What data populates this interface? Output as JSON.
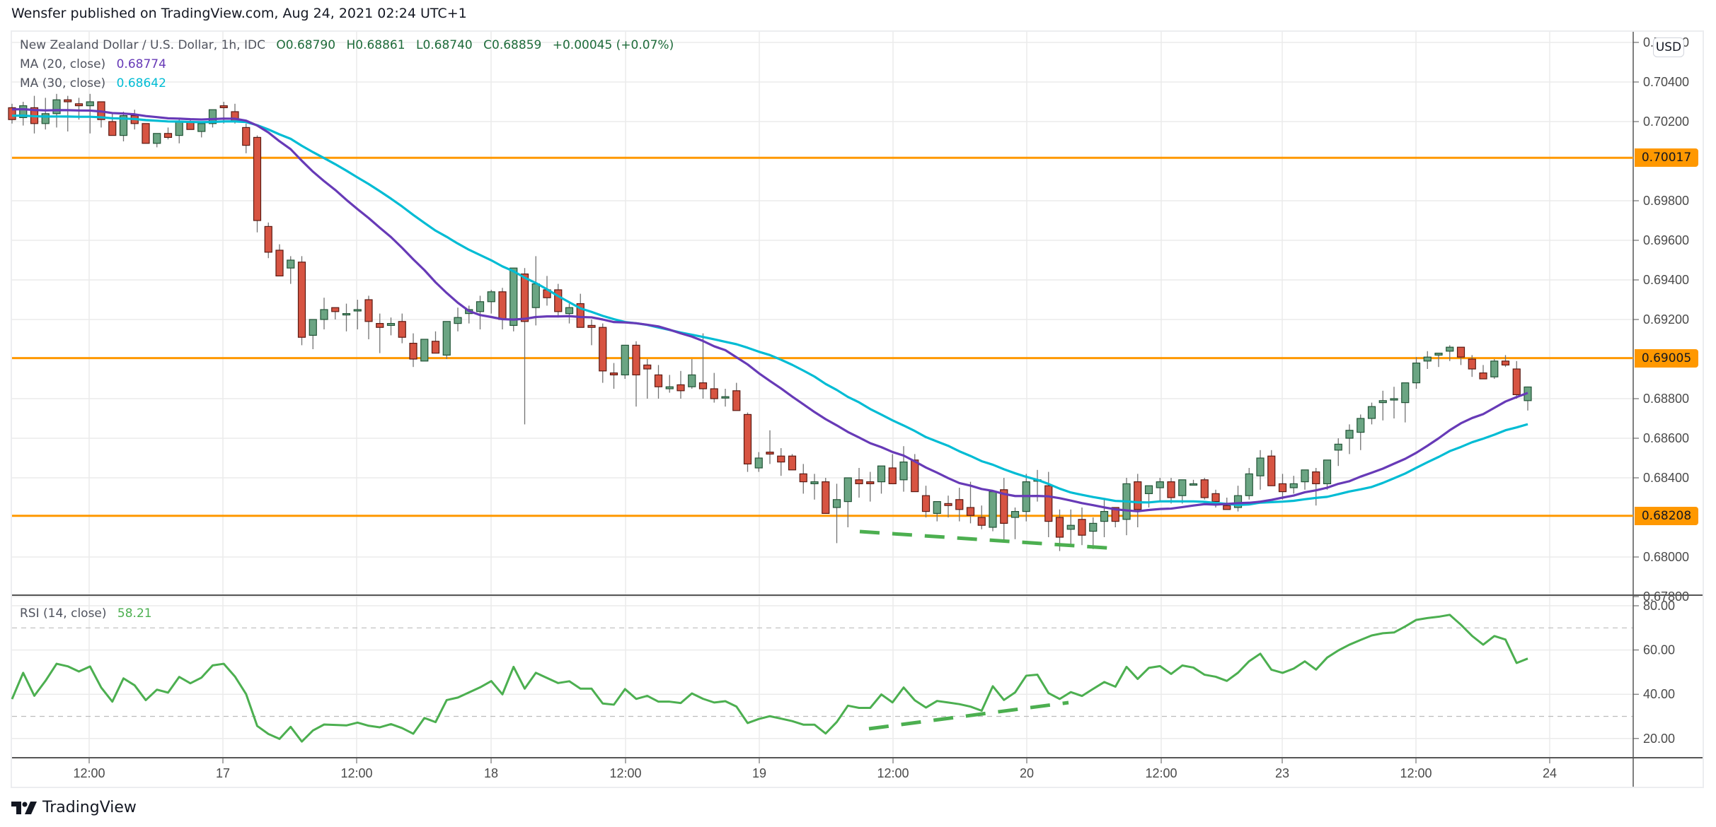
{
  "header": {
    "publisher": "Wensfer published on TradingView.com, Aug 24, 2021 02:24 UTC+1"
  },
  "legend": {
    "symbol": "New Zealand Dollar / U.S. Dollar, 1h, IDC",
    "open": "O0.68790",
    "high": "H0.68861",
    "low": "L0.68740",
    "close": "C0.68859",
    "change": "+0.00045 (+0.07%)",
    "ma20_label": "MA (20, close)",
    "ma20_value": "0.68774",
    "ma30_label": "MA (30, close)",
    "ma30_value": "0.68642",
    "rsi_label": "RSI (14, close)",
    "rsi_value": "58.21"
  },
  "axis": {
    "currency": "USD",
    "price_ticks": [
      "0.70600",
      "0.70400",
      "0.70200",
      "0.69800",
      "0.69600",
      "0.69400",
      "0.69200",
      "0.68800",
      "0.68600",
      "0.68400",
      "0.68000",
      "0.67800"
    ],
    "rsi_ticks": [
      "80.00",
      "60.00",
      "40.00",
      "20.00"
    ],
    "time_ticks": [
      "12:00",
      "17",
      "12:00",
      "18",
      "12:00",
      "19",
      "12:00",
      "20",
      "12:00",
      "23",
      "12:00",
      "24"
    ]
  },
  "levels": [
    {
      "price": 0.70017,
      "label": "0.70017"
    },
    {
      "price": 0.69005,
      "label": "0.69005"
    },
    {
      "price": 0.68208,
      "label": "0.68208"
    }
  ],
  "colors": {
    "up": "#6ba583",
    "up_border": "#225437",
    "down": "#d75442",
    "down_border": "#5b1a13",
    "ma20": "#673ab7",
    "ma30": "#00bcd4",
    "rsi": "#4caf50",
    "level": "#ff9800",
    "trend": "#4caf50"
  },
  "branding": {
    "logo_text": "TradingView"
  },
  "chart_data": {
    "type": "candlestick",
    "title": "New Zealand Dollar / U.S. Dollar, 1h, IDC",
    "xlabel": "",
    "ylabel": "USD",
    "ylim": [
      0.6778,
      0.7062
    ],
    "grid": true,
    "x_ticks": [
      "12:00",
      "17",
      "12:00",
      "18",
      "12:00",
      "19",
      "12:00",
      "20",
      "12:00",
      "23",
      "12:00",
      "24"
    ],
    "ohlc": [
      [
        0.7027,
        0.7029,
        0.7019,
        0.7021
      ],
      [
        0.7022,
        0.703,
        0.7018,
        0.7028
      ],
      [
        0.7027,
        0.7033,
        0.7014,
        0.7019
      ],
      [
        0.7019,
        0.7032,
        0.7016,
        0.7024
      ],
      [
        0.7024,
        0.7034,
        0.7017,
        0.7031
      ],
      [
        0.7031,
        0.7033,
        0.7015,
        0.703
      ],
      [
        0.7029,
        0.7032,
        0.7021,
        0.7028
      ],
      [
        0.7028,
        0.7034,
        0.7014,
        0.703
      ],
      [
        0.703,
        0.703,
        0.7017,
        0.7021
      ],
      [
        0.702,
        0.7024,
        0.7013,
        0.7013
      ],
      [
        0.7013,
        0.7025,
        0.701,
        0.7023
      ],
      [
        0.7023,
        0.7026,
        0.7016,
        0.7019
      ],
      [
        0.7019,
        0.7019,
        0.7009,
        0.7009
      ],
      [
        0.7009,
        0.7014,
        0.7007,
        0.7014
      ],
      [
        0.7014,
        0.7017,
        0.7011,
        0.7012
      ],
      [
        0.7013,
        0.7022,
        0.7009,
        0.702
      ],
      [
        0.702,
        0.7021,
        0.7016,
        0.7016
      ],
      [
        0.7015,
        0.702,
        0.7012,
        0.7019
      ],
      [
        0.7019,
        0.7025,
        0.7017,
        0.7026
      ],
      [
        0.7028,
        0.703,
        0.7019,
        0.7027
      ],
      [
        0.7025,
        0.7029,
        0.7019,
        0.702
      ],
      [
        0.7017,
        0.7019,
        0.7004,
        0.7008
      ],
      [
        0.7012,
        0.7013,
        0.6964,
        0.697
      ],
      [
        0.6967,
        0.6969,
        0.6951,
        0.6954
      ],
      [
        0.6955,
        0.6958,
        0.6943,
        0.6942
      ],
      [
        0.6946,
        0.6952,
        0.6938,
        0.695
      ],
      [
        0.6949,
        0.6952,
        0.6907,
        0.6911
      ],
      [
        0.6912,
        0.6919,
        0.6905,
        0.692
      ],
      [
        0.692,
        0.6931,
        0.6915,
        0.6925
      ],
      [
        0.6926,
        0.6926,
        0.692,
        0.6924
      ],
      [
        0.6923,
        0.6928,
        0.6914,
        0.6923
      ],
      [
        0.6925,
        0.693,
        0.6915,
        0.6925
      ],
      [
        0.693,
        0.6932,
        0.691,
        0.6919
      ],
      [
        0.6918,
        0.6923,
        0.6903,
        0.6916
      ],
      [
        0.6917,
        0.6921,
        0.6912,
        0.6918
      ],
      [
        0.6919,
        0.6923,
        0.6908,
        0.6911
      ],
      [
        0.6908,
        0.6913,
        0.6896,
        0.69
      ],
      [
        0.6899,
        0.6908,
        0.6899,
        0.691
      ],
      [
        0.6909,
        0.6914,
        0.6905,
        0.6903
      ],
      [
        0.6902,
        0.6917,
        0.69,
        0.6919
      ],
      [
        0.6918,
        0.6926,
        0.6914,
        0.6921
      ],
      [
        0.6923,
        0.6927,
        0.6918,
        0.6925
      ],
      [
        0.6924,
        0.6932,
        0.6915,
        0.6929
      ],
      [
        0.6929,
        0.6935,
        0.6923,
        0.6934
      ],
      [
        0.6934,
        0.6936,
        0.6915,
        0.692
      ],
      [
        0.6917,
        0.6946,
        0.6914,
        0.6946
      ],
      [
        0.6943,
        0.6946,
        0.6867,
        0.6919
      ],
      [
        0.6926,
        0.6952,
        0.6917,
        0.6938
      ],
      [
        0.6935,
        0.6942,
        0.6927,
        0.6931
      ],
      [
        0.6935,
        0.6938,
        0.6921,
        0.6924
      ],
      [
        0.6923,
        0.6928,
        0.6918,
        0.6926
      ],
      [
        0.6928,
        0.6933,
        0.6921,
        0.6916
      ],
      [
        0.6917,
        0.692,
        0.6907,
        0.6916
      ],
      [
        0.6916,
        0.6918,
        0.6888,
        0.6894
      ],
      [
        0.6893,
        0.6898,
        0.6885,
        0.6892
      ],
      [
        0.6892,
        0.6904,
        0.689,
        0.6907
      ],
      [
        0.6907,
        0.6909,
        0.6876,
        0.6892
      ],
      [
        0.6897,
        0.69,
        0.688,
        0.6895
      ],
      [
        0.6892,
        0.6897,
        0.688,
        0.6886
      ],
      [
        0.6885,
        0.6892,
        0.6883,
        0.6886
      ],
      [
        0.6887,
        0.6894,
        0.688,
        0.6884
      ],
      [
        0.6886,
        0.69,
        0.6885,
        0.6892
      ],
      [
        0.6888,
        0.6913,
        0.688,
        0.6885
      ],
      [
        0.6885,
        0.6893,
        0.6878,
        0.688
      ],
      [
        0.6881,
        0.6885,
        0.6876,
        0.6881
      ],
      [
        0.6884,
        0.6888,
        0.6875,
        0.6874
      ],
      [
        0.6872,
        0.6873,
        0.6843,
        0.6847
      ],
      [
        0.6845,
        0.6853,
        0.6843,
        0.685
      ],
      [
        0.6853,
        0.6864,
        0.6847,
        0.6852
      ],
      [
        0.6851,
        0.6855,
        0.6841,
        0.6848
      ],
      [
        0.6851,
        0.6852,
        0.6845,
        0.6844
      ],
      [
        0.6842,
        0.6847,
        0.6832,
        0.6838
      ],
      [
        0.6837,
        0.6842,
        0.6829,
        0.6838
      ],
      [
        0.6838,
        0.684,
        0.6825,
        0.6822
      ],
      [
        0.6825,
        0.6837,
        0.6807,
        0.6829
      ],
      [
        0.6828,
        0.684,
        0.6815,
        0.684
      ],
      [
        0.6839,
        0.6845,
        0.683,
        0.6837
      ],
      [
        0.6838,
        0.6843,
        0.6828,
        0.6837
      ],
      [
        0.6838,
        0.6844,
        0.6832,
        0.6846
      ],
      [
        0.6845,
        0.6852,
        0.6837,
        0.6837
      ],
      [
        0.6839,
        0.6856,
        0.6833,
        0.6848
      ],
      [
        0.6849,
        0.6852,
        0.6838,
        0.6833
      ],
      [
        0.6831,
        0.6836,
        0.682,
        0.6823
      ],
      [
        0.6822,
        0.6828,
        0.6818,
        0.6828
      ],
      [
        0.6827,
        0.6831,
        0.682,
        0.6826
      ],
      [
        0.6829,
        0.6835,
        0.6818,
        0.6824
      ],
      [
        0.6825,
        0.6838,
        0.6817,
        0.6821
      ],
      [
        0.682,
        0.6826,
        0.6814,
        0.6816
      ],
      [
        0.6815,
        0.6832,
        0.6813,
        0.6833
      ],
      [
        0.6834,
        0.684,
        0.6808,
        0.6817
      ],
      [
        0.682,
        0.6825,
        0.6809,
        0.6823
      ],
      [
        0.6823,
        0.6842,
        0.6818,
        0.6838
      ],
      [
        0.6839,
        0.6844,
        0.6828,
        0.6839
      ],
      [
        0.6836,
        0.6843,
        0.681,
        0.6818
      ],
      [
        0.682,
        0.6824,
        0.6803,
        0.681
      ],
      [
        0.6814,
        0.6824,
        0.6805,
        0.6816
      ],
      [
        0.6819,
        0.6825,
        0.6806,
        0.6811
      ],
      [
        0.6813,
        0.682,
        0.6804,
        0.6817
      ],
      [
        0.6818,
        0.6829,
        0.681,
        0.6823
      ],
      [
        0.6825,
        0.6825,
        0.6815,
        0.6818
      ],
      [
        0.6819,
        0.684,
        0.6811,
        0.6837
      ],
      [
        0.6838,
        0.6842,
        0.6815,
        0.6824
      ],
      [
        0.6832,
        0.6836,
        0.6825,
        0.6836
      ],
      [
        0.6835,
        0.684,
        0.6828,
        0.6838
      ],
      [
        0.6838,
        0.684,
        0.6827,
        0.683
      ],
      [
        0.6831,
        0.6839,
        0.6827,
        0.6839
      ],
      [
        0.6837,
        0.6839,
        0.6837,
        0.6837
      ],
      [
        0.6839,
        0.684,
        0.6829,
        0.683
      ],
      [
        0.6832,
        0.6834,
        0.6825,
        0.6828
      ],
      [
        0.6826,
        0.683,
        0.6824,
        0.6824
      ],
      [
        0.6825,
        0.6836,
        0.6823,
        0.6831
      ],
      [
        0.6831,
        0.6845,
        0.6829,
        0.6842
      ],
      [
        0.6841,
        0.6854,
        0.6834,
        0.685
      ],
      [
        0.6851,
        0.6854,
        0.6843,
        0.6836
      ],
      [
        0.6837,
        0.6842,
        0.6829,
        0.6833
      ],
      [
        0.6835,
        0.6841,
        0.6832,
        0.6837
      ],
      [
        0.6838,
        0.6844,
        0.6834,
        0.6844
      ],
      [
        0.6843,
        0.6845,
        0.6826,
        0.6837
      ],
      [
        0.6837,
        0.6848,
        0.6834,
        0.6849
      ],
      [
        0.6854,
        0.686,
        0.6846,
        0.6857
      ],
      [
        0.686,
        0.6867,
        0.6852,
        0.6864
      ],
      [
        0.6863,
        0.6872,
        0.6854,
        0.687
      ],
      [
        0.687,
        0.6878,
        0.6867,
        0.6876
      ],
      [
        0.6878,
        0.6884,
        0.6869,
        0.6879
      ],
      [
        0.688,
        0.6886,
        0.687,
        0.688
      ],
      [
        0.6878,
        0.6887,
        0.6868,
        0.6888
      ],
      [
        0.6888,
        0.6901,
        0.6885,
        0.6898
      ],
      [
        0.6899,
        0.6904,
        0.6895,
        0.6901
      ],
      [
        0.6902,
        0.6903,
        0.6896,
        0.6903
      ],
      [
        0.6904,
        0.6907,
        0.6899,
        0.6906
      ],
      [
        0.6906,
        0.6906,
        0.6897,
        0.6901
      ],
      [
        0.69,
        0.6902,
        0.6891,
        0.6895
      ],
      [
        0.6893,
        0.6897,
        0.689,
        0.689
      ],
      [
        0.6891,
        0.69,
        0.689,
        0.6899
      ],
      [
        0.6899,
        0.6902,
        0.6896,
        0.6897
      ],
      [
        0.6895,
        0.6899,
        0.688,
        0.6882
      ],
      [
        0.6879,
        0.68861,
        0.6874,
        0.68859
      ]
    ],
    "ma20_last": 0.68774,
    "ma30_last": 0.68642,
    "rsi_last": 58.21,
    "horizontal_levels": [
      0.70017,
      0.69005,
      0.68208
    ]
  }
}
